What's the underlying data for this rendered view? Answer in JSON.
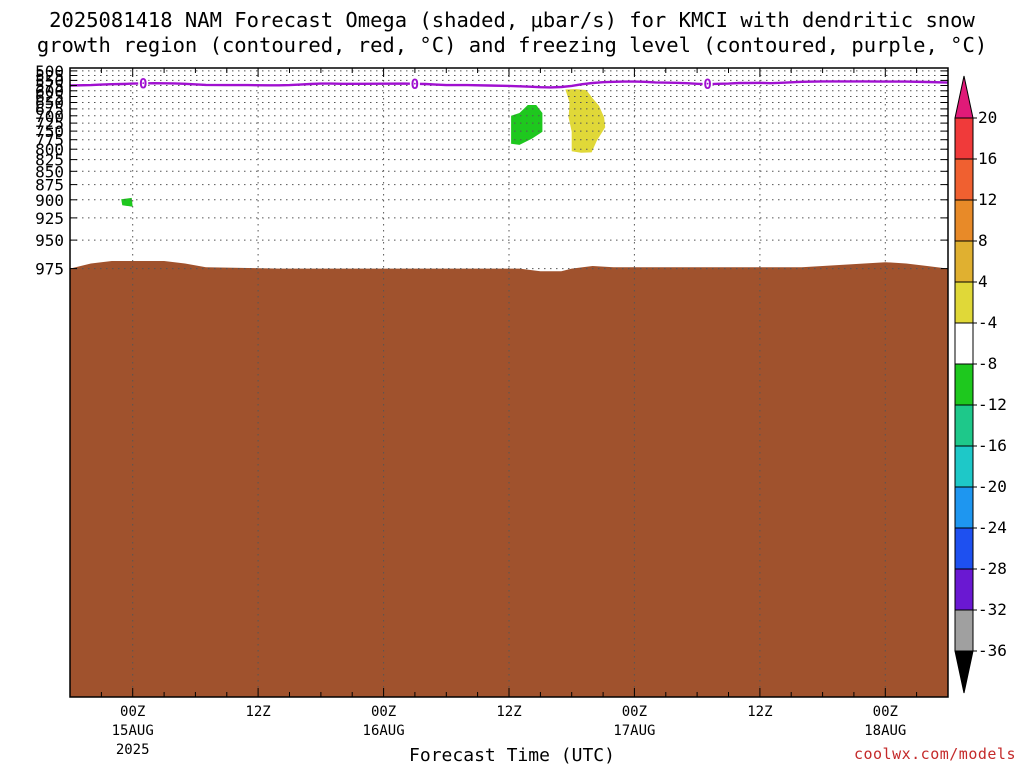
{
  "title": {
    "line1": "2025081418 NAM Forecast Omega (shaded, μbar/s) for KMCI with dendritic snow",
    "line2": "growth region (contoured, red, °C) and freezing level (contoured, purple, °C)"
  },
  "xlabel": "Forecast Time (UTC)",
  "credit": "coolwx.com/models",
  "chart_data": {
    "type": "area",
    "title": "2025081418 NAM Forecast Omega (shaded, μbar/s) for KMCI with dendritic snow growth region (contoured, red, °C) and freezing level (contoured, purple, °C)",
    "xlabel": "Forecast Time (UTC)",
    "ylabel": "",
    "y_axis": "pressure (hPa), inverted",
    "y_ticks": [
      500,
      525,
      550,
      575,
      600,
      625,
      650,
      675,
      700,
      725,
      750,
      775,
      800,
      825,
      850,
      875,
      900,
      925,
      950,
      975
    ],
    "x_ticks": [
      {
        "h": 6,
        "label": "00Z",
        "sub1": "15AUG",
        "sub2": "2025"
      },
      {
        "h": 18,
        "label": "12Z",
        "sub1": "",
        "sub2": ""
      },
      {
        "h": 30,
        "label": "00Z",
        "sub1": "16AUG",
        "sub2": ""
      },
      {
        "h": 42,
        "label": "12Z",
        "sub1": "",
        "sub2": ""
      },
      {
        "h": 54,
        "label": "00Z",
        "sub1": "17AUG",
        "sub2": ""
      },
      {
        "h": 66,
        "label": "12Z",
        "sub1": "",
        "sub2": ""
      },
      {
        "h": 78,
        "label": "00Z",
        "sub1": "18AUG",
        "sub2": ""
      }
    ],
    "xlim": [
      0,
      84
    ],
    "grid": true,
    "colorbar": {
      "labels": [
        "20",
        "16",
        "12",
        "8",
        "4",
        "-4",
        "-8",
        "-12",
        "-16",
        "-20",
        "-24",
        "-28",
        "-32",
        "-36"
      ],
      "colors": [
        "#f03a3a",
        "#f06030",
        "#e88a28",
        "#e0b030",
        "#e0d838",
        "#ffffff",
        "#1ec81e",
        "#1ec88a",
        "#1ec8c8",
        "#1e96f0",
        "#1e50f0",
        "#6a18d2",
        "#9a08c8",
        "#a0a0a0"
      ],
      "over_color": "#e01a78",
      "under_color": "#000000"
    },
    "freezing_level": {
      "color": "#a010d0",
      "label": "0",
      "label_at_h": [
        7,
        33,
        61
      ],
      "points": [
        [
          0,
          575
        ],
        [
          2,
          573
        ],
        [
          3,
          571
        ],
        [
          4,
          569
        ],
        [
          5,
          568
        ],
        [
          6,
          566
        ],
        [
          7,
          565
        ],
        [
          8,
          564
        ],
        [
          10,
          565
        ],
        [
          11,
          567
        ],
        [
          13,
          572
        ],
        [
          15,
          573
        ],
        [
          17,
          573
        ],
        [
          19,
          574
        ],
        [
          20,
          574
        ],
        [
          21,
          573
        ],
        [
          22,
          571
        ],
        [
          23,
          568
        ],
        [
          24,
          566
        ],
        [
          25,
          566
        ],
        [
          26,
          567
        ],
        [
          28,
          567
        ],
        [
          32,
          566
        ],
        [
          33,
          567
        ],
        [
          34,
          568
        ],
        [
          35,
          571
        ],
        [
          36,
          573
        ],
        [
          38,
          573
        ],
        [
          40,
          575
        ],
        [
          42,
          577
        ],
        [
          44,
          581
        ],
        [
          45,
          583
        ],
        [
          46,
          584
        ],
        [
          47,
          582
        ],
        [
          48,
          577
        ],
        [
          49,
          569
        ],
        [
          50,
          563
        ],
        [
          51,
          559
        ],
        [
          52,
          557
        ],
        [
          53,
          556
        ],
        [
          54,
          556
        ],
        [
          55,
          557
        ],
        [
          56,
          560
        ],
        [
          58,
          562
        ],
        [
          59,
          564
        ],
        [
          60,
          567
        ],
        [
          61,
          569
        ],
        [
          62,
          567
        ],
        [
          63,
          566
        ],
        [
          64,
          563
        ],
        [
          65,
          563
        ],
        [
          66,
          562
        ],
        [
          67,
          564
        ],
        [
          68,
          562
        ],
        [
          70,
          557
        ],
        [
          72,
          555
        ],
        [
          74,
          555
        ],
        [
          76,
          555
        ],
        [
          78,
          556
        ],
        [
          80,
          556
        ],
        [
          82,
          558
        ],
        [
          84,
          561
        ]
      ]
    },
    "omega_regions": [
      {
        "value_range": "-8 to -4",
        "color": "#1ec81e",
        "polygon": [
          [
            4.9,
            899
          ],
          [
            5.9,
            897
          ],
          [
            6.0,
            910
          ],
          [
            5.0,
            908
          ]
        ]
      },
      {
        "value_range": "-8 to -4",
        "color": "#1ec81e",
        "polygon": [
          [
            43.0,
            690
          ],
          [
            43.8,
            660
          ],
          [
            44.6,
            660
          ],
          [
            45.2,
            690
          ],
          [
            45.2,
            752
          ],
          [
            44.2,
            772
          ],
          [
            43.5,
            782
          ],
          [
            43.0,
            789
          ],
          [
            42.2,
            786
          ],
          [
            42.2,
            700
          ]
        ]
      },
      {
        "value_range": "4 to 8",
        "color": "#e0d838",
        "polygon": [
          [
            47.4,
            594
          ],
          [
            48.4,
            592
          ],
          [
            49.4,
            596
          ],
          [
            50.0,
            632
          ],
          [
            50.6,
            662
          ],
          [
            51.1,
            705
          ],
          [
            51.2,
            738
          ],
          [
            50.4,
            778
          ],
          [
            49.9,
            808
          ],
          [
            48.9,
            809
          ],
          [
            48.0,
            805
          ],
          [
            48.0,
            752
          ],
          [
            47.7,
            706
          ],
          [
            47.8,
            650
          ]
        ]
      }
    ],
    "terrain": {
      "color": "#a0522d",
      "points": [
        [
          0,
          975
        ],
        [
          2,
          971
        ],
        [
          4,
          969
        ],
        [
          7,
          969
        ],
        [
          9,
          969
        ],
        [
          11,
          971
        ],
        [
          13,
          974
        ],
        [
          20,
          975
        ],
        [
          30,
          975
        ],
        [
          40,
          975
        ],
        [
          43,
          975
        ],
        [
          45,
          977
        ],
        [
          47,
          977
        ],
        [
          48,
          975
        ],
        [
          50,
          973
        ],
        [
          52,
          974
        ],
        [
          60,
          974
        ],
        [
          70,
          974
        ],
        [
          74,
          972
        ],
        [
          76,
          971
        ],
        [
          78,
          970
        ],
        [
          80,
          971
        ],
        [
          82,
          973
        ],
        [
          84,
          975
        ]
      ]
    }
  }
}
